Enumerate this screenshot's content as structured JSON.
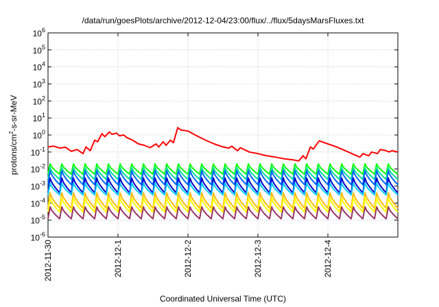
{
  "chart_data": {
    "type": "line",
    "title": "/data/run/goesPlots/archive/2012-12-04/23:00/flux/../flux/5daysMarsFluxes.txt",
    "xlabel": "Coordinated Universal Time (UTC)",
    "ylabel": {
      "base": "protons/cm",
      "sup": "2",
      "rest": "-s-sr-MeV"
    },
    "x_scale": "time",
    "xlim": [
      "2012-11-30",
      "2012-12-05"
    ],
    "x_ticks": [
      "2012-11-30",
      "2012-12-1",
      "2012-12-2",
      "2012-12-3",
      "2012-12-4"
    ],
    "y_scale": "log",
    "ylim": [
      1e-06,
      1000000.0
    ],
    "y_ticks": [
      {
        "base": "10",
        "exp": "-6"
      },
      {
        "base": "10",
        "exp": "-5"
      },
      {
        "base": "10",
        "exp": "-4"
      },
      {
        "base": "10",
        "exp": "-3"
      },
      {
        "base": "10",
        "exp": "-2"
      },
      {
        "base": "10",
        "exp": "-1"
      },
      {
        "base": "10",
        "exp": "0"
      },
      {
        "base": "10",
        "exp": "1"
      },
      {
        "base": "10",
        "exp": "2"
      },
      {
        "base": "10",
        "exp": "3"
      },
      {
        "base": "10",
        "exp": "4"
      },
      {
        "base": "10",
        "exp": "5"
      },
      {
        "base": "10",
        "exp": "6"
      }
    ],
    "grid": true,
    "legend": "none",
    "series": [
      {
        "color": "#ff0000",
        "x": [
          "2012-11-30 00:00",
          "2012-11-30 02:00",
          "2012-11-30 04:00",
          "2012-11-30 06:00",
          "2012-11-30 08:00",
          "2012-11-30 10:00",
          "2012-11-30 12:00",
          "2012-11-30 13:00",
          "2012-11-30 14:30",
          "2012-11-30 16:00",
          "2012-11-30 17:00",
          "2012-11-30 18:30",
          "2012-11-30 19:30",
          "2012-11-30 21:00",
          "2012-11-30 22:00",
          "2012-11-30 23:30",
          "2012-12-01 00:30",
          "2012-12-01 02:00",
          "2012-12-01 03:00",
          "2012-12-01 05:00",
          "2012-12-01 07:00",
          "2012-12-01 09:00",
          "2012-12-01 11:00",
          "2012-12-01 13:00",
          "2012-12-01 14:00",
          "2012-12-01 15:30",
          "2012-12-01 16:30",
          "2012-12-01 18:00",
          "2012-12-01 19:00",
          "2012-12-01 20:30",
          "2012-12-01 21:30",
          "2012-12-02 00:00",
          "2012-12-02 03:00",
          "2012-12-02 06:00",
          "2012-12-02 09:00",
          "2012-12-02 12:00",
          "2012-12-02 14:00",
          "2012-12-02 15:00",
          "2012-12-02 17:00",
          "2012-12-02 18:00",
          "2012-12-02 21:00",
          "2012-12-03 00:00",
          "2012-12-03 03:00",
          "2012-12-03 06:00",
          "2012-12-03 09:00",
          "2012-12-03 12:00",
          "2012-12-03 14:00",
          "2012-12-03 15:30",
          "2012-12-03 16:30",
          "2012-12-03 18:00",
          "2012-12-03 19:00",
          "2012-12-03 21:00",
          "2012-12-04 00:00",
          "2012-12-04 03:00",
          "2012-12-04 06:00",
          "2012-12-04 09:00",
          "2012-12-04 11:00",
          "2012-12-04 12:00",
          "2012-12-04 14:00",
          "2012-12-04 15:00",
          "2012-12-04 17:00",
          "2012-12-04 18:00",
          "2012-12-04 20:00",
          "2012-12-04 21:00",
          "2012-12-04 22:00",
          "2012-12-05 00:00"
        ],
        "y": [
          0.2,
          0.22,
          0.17,
          0.19,
          0.11,
          0.14,
          0.08,
          0.2,
          0.12,
          0.5,
          0.4,
          1.2,
          0.8,
          1.5,
          1.1,
          1.3,
          0.9,
          1.0,
          0.7,
          0.5,
          0.3,
          0.25,
          0.18,
          0.3,
          0.2,
          0.4,
          0.25,
          0.5,
          0.35,
          2.7,
          2.0,
          1.7,
          0.9,
          0.5,
          0.3,
          0.2,
          0.17,
          0.22,
          0.12,
          0.18,
          0.1,
          0.08,
          0.06,
          0.05,
          0.04,
          0.035,
          0.03,
          0.06,
          0.04,
          0.2,
          0.15,
          0.45,
          0.3,
          0.2,
          0.12,
          0.07,
          0.05,
          0.08,
          0.06,
          0.1,
          0.08,
          0.14,
          0.12,
          0.1,
          0.12,
          0.1
        ]
      },
      {
        "color": "#00ff00",
        "low": 0.005,
        "high": 0.02,
        "period_hours": 4
      },
      {
        "color": "#00dd99",
        "low": 0.0025,
        "high": 0.012,
        "period_hours": 4
      },
      {
        "color": "#0066ff",
        "low": 0.0012,
        "high": 0.008,
        "period_hours": 4
      },
      {
        "color": "#0000cc",
        "low": 0.0004,
        "high": 0.003,
        "period_hours": 4
      },
      {
        "color": "#00ccff",
        "low": 0.0003,
        "high": 0.0015,
        "period_hours": 4
      },
      {
        "color": "#ffbb00",
        "low": 5e-05,
        "high": 0.0004,
        "period_hours": 4
      },
      {
        "color": "#ffff00",
        "low": 3e-05,
        "high": 0.0002,
        "period_hours": 4
      },
      {
        "color": "#993366",
        "low": 1.2e-05,
        "high": 6e-05,
        "period_hours": 4
      }
    ]
  }
}
